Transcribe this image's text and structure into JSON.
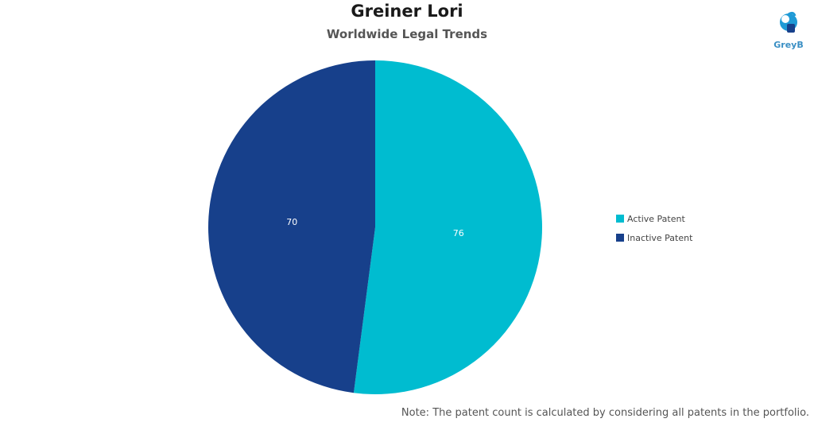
{
  "header": {
    "title": "Greiner Lori",
    "subtitle": "Worldwide Legal Trends"
  },
  "logo": {
    "text": "GreyB",
    "color": "#3a8fc4"
  },
  "chart_data": {
    "type": "pie",
    "title": "Greiner Lori",
    "subtitle": "Worldwide Legal Trends",
    "categories": [
      "Active Patent",
      "Inactive Patent"
    ],
    "values": [
      76,
      70
    ],
    "colors": [
      "#00bcd0",
      "#17408b"
    ],
    "start": "top, clockwise",
    "legend": {
      "placement": "right",
      "entries": [
        "Active Patent",
        "Inactive Patent"
      ]
    }
  },
  "note": "Note: The patent count is calculated by considering all patents in the portfolio."
}
